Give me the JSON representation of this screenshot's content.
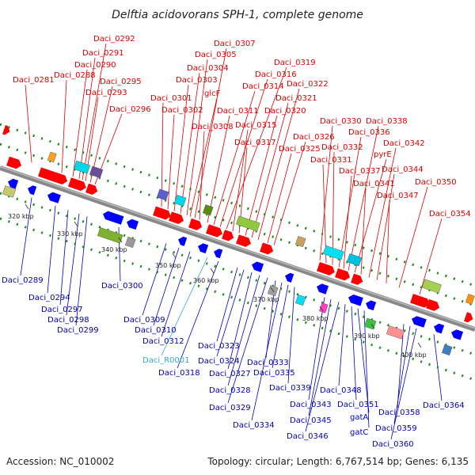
{
  "title": "Delftia acidovorans SPH-1, complete genome",
  "footer": {
    "accession": "Accession: NC_010002",
    "topology": "Topology: circular; Length: 6,767,514 bp; Genes: 6,135"
  },
  "colors": {
    "forward_label": "#dd0000",
    "reverse_label": "#0000bb",
    "rna_label": "#33aadd",
    "backbone": "#888888",
    "dots": "#1a8a1a"
  },
  "ticks": [
    "320 kbp",
    "330 kbp",
    "340 kbp",
    "350 kbp",
    "360 kbp",
    "370 kbp",
    "380 kbp",
    "390 kbp",
    "400 kbp"
  ],
  "top_genes": [
    "Daci_0281",
    "Daci_0288",
    "Daci_0290",
    "Daci_0291",
    "Daci_0292",
    "Daci_0293",
    "Daci_0295",
    "Daci_0296",
    "Daci_0301",
    "Daci_0302",
    "Daci_0303",
    "Daci_0304",
    "Daci_0305",
    "Daci_0307",
    "glcF",
    "Daci_0308",
    "Daci_0311",
    "Daci_0314",
    "Daci_0316",
    "Daci_0319",
    "Daci_0315",
    "Daci_0317",
    "Daci_0320",
    "Daci_0321",
    "Daci_0322",
    "Daci_0325",
    "Daci_0326",
    "Daci_0330",
    "Daci_0331",
    "Daci_0332",
    "Daci_0336",
    "Daci_0337",
    "Daci_0338",
    "pyrE",
    "Daci_0341",
    "Daci_0342",
    "Daci_0344",
    "Daci_0347",
    "Daci_0350",
    "Daci_0354"
  ],
  "bottom_genes": [
    "Daci_0289",
    "Daci_0294",
    "Daci_0297",
    "Daci_0298",
    "Daci_0299",
    "Daci_0300",
    "Daci_0309",
    "Daci_0310",
    "Daci_0312",
    "Daci_R0001",
    "Daci_0318",
    "Daci_0323",
    "Daci_0324",
    "Daci_0327",
    "Daci_0328",
    "Daci_0329",
    "Daci_0333",
    "Daci_0334",
    "Daci_0335",
    "Daci_0339",
    "Daci_0343",
    "Daci_0345",
    "Daci_0346",
    "Daci_0348",
    "Daci_0351",
    "gatA",
    "gatC",
    "Daci_0358",
    "Daci_0359",
    "Daci_0360",
    "Daci_0364"
  ]
}
